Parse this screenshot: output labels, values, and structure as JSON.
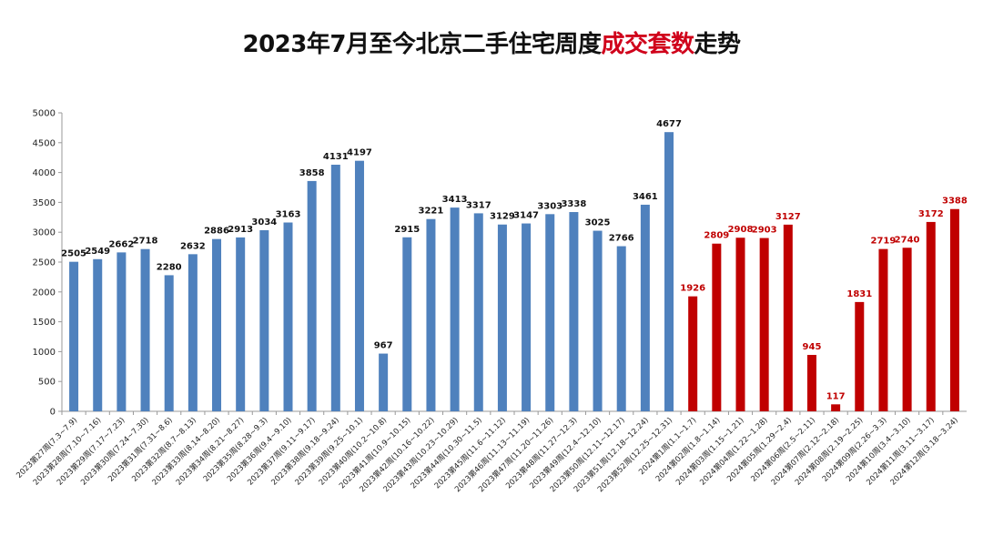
{
  "chart_data": {
    "type": "bar",
    "title_parts": [
      "2023年7月至今北京二手住宅周度",
      "成交套数",
      "走势"
    ],
    "xlabel": "",
    "ylabel": "",
    "ylim": [
      0,
      5000
    ],
    "yticks": [
      0,
      500,
      1000,
      1500,
      2000,
      2500,
      3000,
      3500,
      4000,
      4500,
      5000
    ],
    "grid": false,
    "legend": "none",
    "colors": {
      "2023": "#4f81bd",
      "2024": "#c00000"
    },
    "categories": [
      "2023第27周(7.3~7.9)",
      "2023第28周(7.10~7.16)",
      "2023第29周(7.17~7.23)",
      "2023第30周(7.24~7.30)",
      "2023第31周(7.31~8.6)",
      "2023第32周(8.7~8.13)",
      "2023第33周(8.14~8.20)",
      "2023第34周(8.21~8.27)",
      "2023第35周(8.28~9.3)",
      "2023第36周(9.4~9.10)",
      "2023第37周(9.11~9.17)",
      "2023第38周(9.18~9.24)",
      "2023第39周(9.25~10.1)",
      "2023第40周(10.2~10.8)",
      "2023第41周(10.9~10.15)",
      "2023第42周(10.16~10.22)",
      "2023第43周(10.23~10.29)",
      "2023第44周(10.30~11.5)",
      "2023第45周(11.6~11.12)",
      "2023第46周(11.13~11.19)",
      "2023第47周(11.20~11.26)",
      "2023第48周(11.27~12.3)",
      "2023第49周(12.4~12.10)",
      "2023第50周(12.11~12.17)",
      "2023第51周(12.18~12.24)",
      "2023第52周(12.25~12.31)",
      "2024第1周(1.1~1.7)",
      "2024第02周(1.8~1.14)",
      "2024第03周(1.15~1.21)",
      "2024第04周(1.22~1.28)",
      "2024第05周(1.29~2.4)",
      "2024第06周(2.5~2.11)",
      "2024第07周(2.12~2.18)",
      "2024第08周(2.19~2.25)",
      "2024第09周(2.26~3.3)",
      "2024第10周(3.4~3.10)",
      "2024第11周(3.11~3.17)",
      "2024第12周(3.18~3.24)"
    ],
    "values": [
      2505,
      2549,
      2662,
      2718,
      2280,
      2632,
      2886,
      2913,
      3034,
      3163,
      3858,
      4131,
      4197,
      967,
      2915,
      3221,
      3413,
      3317,
      3129,
      3147,
      3303,
      3338,
      3025,
      2766,
      3461,
      4677,
      1926,
      2809,
      2908,
      2903,
      3127,
      945,
      117,
      1831,
      2719,
      2740,
      3172,
      3388
    ],
    "year": [
      "2023",
      "2023",
      "2023",
      "2023",
      "2023",
      "2023",
      "2023",
      "2023",
      "2023",
      "2023",
      "2023",
      "2023",
      "2023",
      "2023",
      "2023",
      "2023",
      "2023",
      "2023",
      "2023",
      "2023",
      "2023",
      "2023",
      "2023",
      "2023",
      "2023",
      "2023",
      "2024",
      "2024",
      "2024",
      "2024",
      "2024",
      "2024",
      "2024",
      "2024",
      "2024",
      "2024",
      "2024",
      "2024"
    ]
  }
}
